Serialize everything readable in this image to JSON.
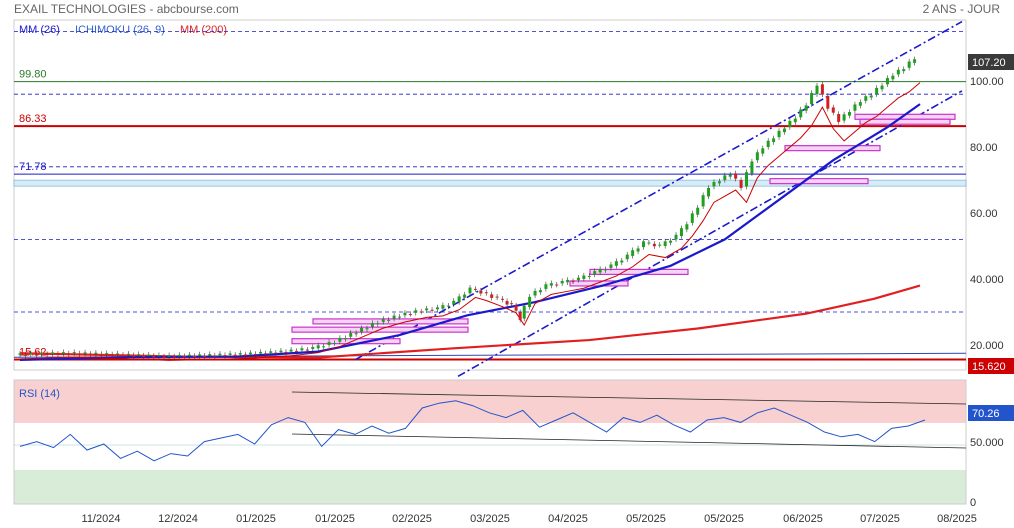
{
  "header": {
    "title": "EXAIL TECHNOLOGIES - abcbourse.com",
    "period": "2 ANS - JOUR"
  },
  "legend": {
    "mm26": "MM (26)",
    "ichimoku": "ICHIMOKU (26, 9)",
    "mm200": "MM (200)"
  },
  "colors": {
    "mm26": "#1a1acc",
    "ichimoku": "#3366cc",
    "mm200": "#e02020",
    "tenkan": "#cc0000",
    "candle_up": "#1ea01e",
    "candle_down": "#d02020",
    "channel": "#1a1acc",
    "zones": "#cc33cc",
    "rsi_line": "#2255cc",
    "rsi_overbought": "#f8d0d0",
    "rsi_oversold": "#d8ecd8"
  },
  "rsi": {
    "label": "RSI (14)",
    "current": "70.26",
    "ticks": [
      "50.000",
      "0"
    ]
  },
  "chart_data": {
    "type": "candlestick",
    "x_labels": [
      "11/2024",
      "12/2024",
      "01/2025",
      "01/2025",
      "02/2025",
      "03/2025",
      "04/2025",
      "05/2025",
      "05/2025",
      "06/2025",
      "07/2025",
      "08/2025"
    ],
    "y_ticks": [
      "100.00",
      "80.00",
      "60.00",
      "40.000",
      "20.000"
    ],
    "ylim": [
      10,
      120
    ],
    "last_price": "107.20",
    "low_marker": "15.620",
    "support_lines": [
      {
        "label": "99.80",
        "value": 99.8,
        "color": "#2a7a2a"
      },
      {
        "label": "86.33",
        "value": 86.33,
        "color": "#cc0000"
      },
      {
        "label": "71.78",
        "value": 71.78,
        "color": "#1a1acc"
      },
      {
        "label": "15.62",
        "value": 15.62,
        "color": "#cc0000"
      }
    ],
    "dashed_levels": [
      115,
      96,
      74,
      52,
      30
    ],
    "close_path": [
      [
        0,
        17
      ],
      [
        20,
        17.5
      ],
      [
        40,
        17
      ],
      [
        55,
        16.5
      ],
      [
        70,
        16.8
      ],
      [
        85,
        17.2
      ],
      [
        100,
        18
      ],
      [
        110,
        19
      ],
      [
        118,
        21
      ],
      [
        126,
        24
      ],
      [
        134,
        27
      ],
      [
        142,
        29
      ],
      [
        150,
        30.5
      ],
      [
        156,
        31
      ],
      [
        162,
        33
      ],
      [
        168,
        37
      ],
      [
        172,
        36
      ],
      [
        178,
        34
      ],
      [
        183,
        32
      ],
      [
        186,
        28
      ],
      [
        190,
        35
      ],
      [
        196,
        38
      ],
      [
        202,
        39
      ],
      [
        208,
        40
      ],
      [
        214,
        42
      ],
      [
        220,
        44
      ],
      [
        226,
        47
      ],
      [
        232,
        51
      ],
      [
        238,
        50
      ],
      [
        244,
        53
      ],
      [
        248,
        57
      ],
      [
        252,
        62
      ],
      [
        256,
        68
      ],
      [
        260,
        70
      ],
      [
        264,
        72
      ],
      [
        268,
        68
      ],
      [
        272,
        76
      ],
      [
        276,
        80
      ],
      [
        280,
        83
      ],
      [
        284,
        86
      ],
      [
        288,
        89
      ],
      [
        292,
        93
      ],
      [
        296,
        99
      ],
      [
        300,
        92
      ],
      [
        304,
        88
      ],
      [
        308,
        91
      ],
      [
        312,
        94
      ],
      [
        316,
        96
      ],
      [
        320,
        99
      ],
      [
        324,
        102
      ],
      [
        328,
        104
      ],
      [
        332,
        107
      ]
    ],
    "mm26_path": [
      [
        0,
        15.5
      ],
      [
        40,
        16.3
      ],
      [
        80,
        16.5
      ],
      [
        110,
        18
      ],
      [
        140,
        23
      ],
      [
        165,
        29
      ],
      [
        190,
        33
      ],
      [
        215,
        38
      ],
      [
        240,
        44
      ],
      [
        260,
        52
      ],
      [
        280,
        64
      ],
      [
        300,
        76
      ],
      [
        320,
        86
      ],
      [
        332,
        93
      ]
    ],
    "mm200_path": [
      [
        0,
        17.5
      ],
      [
        60,
        16.5
      ],
      [
        110,
        16.2
      ],
      [
        160,
        19
      ],
      [
        210,
        21.5
      ],
      [
        250,
        25
      ],
      [
        290,
        29.5
      ],
      [
        315,
        34
      ],
      [
        332,
        38
      ]
    ],
    "rsi_series": [
      48,
      52,
      47,
      58,
      45,
      50,
      38,
      44,
      36,
      42,
      40,
      52,
      55,
      58,
      50,
      66,
      72,
      68,
      48,
      62,
      58,
      65,
      59,
      63,
      80,
      84,
      86,
      82,
      76,
      72,
      78,
      64,
      70,
      76,
      68,
      60,
      72,
      68,
      74,
      66,
      60,
      70,
      72,
      68,
      76,
      80,
      74,
      68,
      60,
      56,
      58,
      52,
      63,
      65,
      70
    ]
  }
}
